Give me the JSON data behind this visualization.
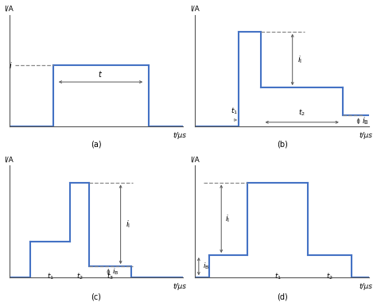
{
  "blue": "#4472C4",
  "gray": "#808080",
  "arrow_color": "#555555",
  "dashed_color": "#888888",
  "label_color": "#333333",
  "axis_color": "#555555",
  "bg": "#ffffff",
  "subplots": [
    "(a)",
    "(b)",
    "(c)",
    "(d)"
  ]
}
